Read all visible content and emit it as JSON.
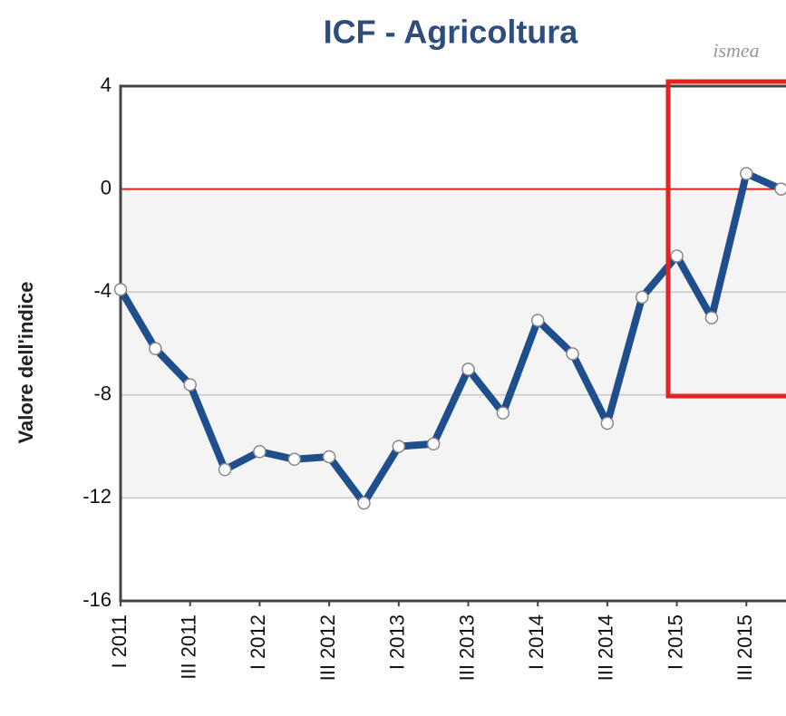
{
  "chart_data": {
    "type": "line",
    "title": "ICF - Agricoltura",
    "logo": "ismea",
    "y_label": "Valore dell'indice",
    "categories": [
      "I 2011",
      null,
      "III 2011",
      null,
      "I 2012",
      null,
      "III 2012",
      null,
      "I 2013",
      null,
      "III 2013",
      null,
      "I 2014",
      null,
      "III 2014",
      null,
      "I 2015",
      null,
      "III 2015",
      null
    ],
    "series": [
      {
        "name": "ICF",
        "color": "#1f4e8c",
        "values": [
          -3.9,
          -6.2,
          -7.6,
          -10.9,
          -10.2,
          -10.5,
          -10.4,
          -12.2,
          -10.0,
          -9.9,
          -7.0,
          -8.7,
          -5.1,
          -6.4,
          -9.1,
          -4.2,
          -2.6,
          -5.0,
          0.6,
          0
        ]
      }
    ],
    "ylim": [
      -16,
      4
    ],
    "yticks": [
      -16,
      -12,
      -8,
      -4,
      0,
      4
    ],
    "grid": true,
    "reference_line": 0,
    "band": [
      -12,
      0
    ]
  }
}
